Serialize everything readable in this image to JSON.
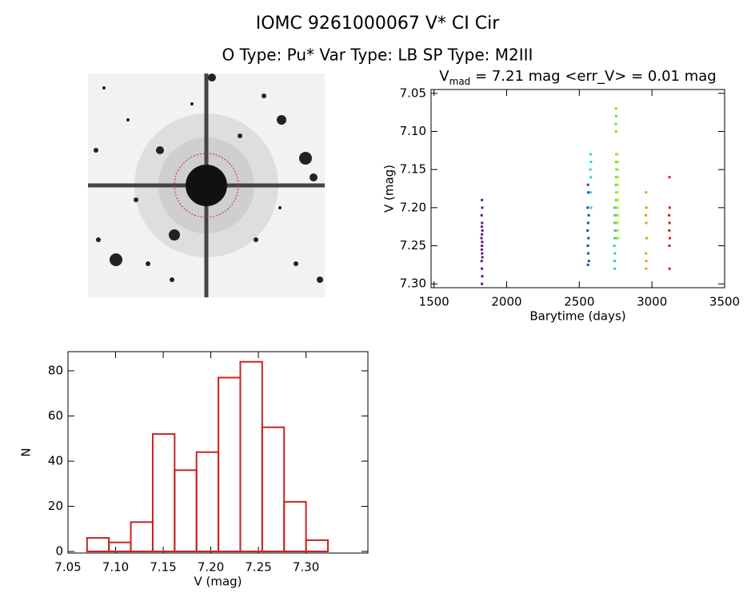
{
  "header": {
    "title": "IOMC 9261000067    V* CI Cir",
    "subtitle": "O Type: Pu*  Var Type: LB  SP Type: M2III"
  },
  "chart_data": [
    {
      "type": "scatter",
      "title": [
        "V",
        "mad",
        " = 7.21 mag <err_V> = 0.01 mag"
      ],
      "xlabel": "Barytime (days)",
      "ylabel": "V (mag)",
      "xlim": [
        1480,
        3500
      ],
      "ylim": [
        7.045,
        7.305
      ],
      "y_inverted": true,
      "xticks": [
        1500,
        2000,
        2500,
        3000,
        3500
      ],
      "yticks": [
        7.05,
        {
          "value": 7.1,
          "label": "7.10"
        },
        7.15,
        {
          "value": 7.2,
          "label": "7.20"
        },
        7.25,
        {
          "value": 7.3,
          "label": "7.30"
        }
      ],
      "series": [
        {
          "color": "#5a1a8a",
          "x": [
            1830,
            1832,
            1828,
            1831,
            1829,
            1833,
            1830,
            1827,
            1832,
            1830,
            1829,
            1831,
            1833,
            1828,
            1830,
            1832,
            1830
          ],
          "y": [
            7.19,
            7.2,
            7.21,
            7.22,
            7.225,
            7.23,
            7.235,
            7.24,
            7.245,
            7.25,
            7.255,
            7.26,
            7.265,
            7.27,
            7.28,
            7.29,
            7.3
          ]
        },
        {
          "color": "#1f4fb0",
          "x": [
            2560,
            2562,
            2558,
            2565,
            2561,
            2557,
            2563,
            2559,
            2562,
            2566,
            2560
          ],
          "y": [
            7.17,
            7.18,
            7.2,
            7.21,
            7.22,
            7.23,
            7.24,
            7.25,
            7.26,
            7.27,
            7.275
          ]
        },
        {
          "color": "#2ad4e0",
          "x": [
            2578,
            2580,
            2576,
            2579,
            2577,
            2581
          ],
          "y": [
            7.13,
            7.14,
            7.15,
            7.16,
            7.18,
            7.2
          ]
        },
        {
          "color": "#2ad4a0",
          "x": [
            2742,
            2745,
            2743,
            2746,
            2744,
            2741,
            2745,
            2743,
            2744
          ],
          "y": [
            7.2,
            7.21,
            7.22,
            7.23,
            7.24,
            7.25,
            7.26,
            7.27,
            7.28
          ]
        },
        {
          "color": "#6fe03a",
          "x": [
            2752,
            2754,
            2751,
            2753,
            2755,
            2752,
            2756,
            2753,
            2751,
            2754,
            2752,
            2755,
            2753,
            2750,
            2756
          ],
          "y": [
            7.07,
            7.08,
            7.09,
            7.1,
            7.13,
            7.14,
            7.15,
            7.16,
            7.17,
            7.18,
            7.19,
            7.2,
            7.21,
            7.22,
            7.24
          ]
        },
        {
          "color": "#b8e030",
          "x": [
            2762,
            2765,
            2763,
            2766,
            2764,
            2761,
            2765,
            2763,
            2767,
            2764,
            2762,
            2766
          ],
          "y": [
            7.13,
            7.14,
            7.15,
            7.16,
            7.17,
            7.18,
            7.19,
            7.2,
            7.21,
            7.22,
            7.23,
            7.24
          ]
        },
        {
          "color": "#e0a020",
          "x": [
            2960,
            2962,
            2958,
            2961,
            2963,
            2959,
            2961,
            2960
          ],
          "y": [
            7.18,
            7.2,
            7.21,
            7.22,
            7.24,
            7.26,
            7.27,
            7.28
          ]
        },
        {
          "color": "#d02020",
          "x": [
            3120,
            3122,
            3118,
            3121,
            3119,
            3123,
            3120,
            3121
          ],
          "y": [
            7.16,
            7.2,
            7.21,
            7.22,
            7.23,
            7.24,
            7.25,
            7.28
          ]
        }
      ]
    },
    {
      "type": "histogram",
      "xlabel": "V (mag)",
      "ylabel": "N",
      "xlim": [
        7.05,
        7.365
      ],
      "ylim": [
        -0.7,
        88.5
      ],
      "xticks": [
        7.05,
        {
          "value": 7.1,
          "label": "7.10"
        },
        7.15,
        {
          "value": 7.2,
          "label": "7.20"
        },
        7.25,
        {
          "value": 7.3,
          "label": "7.30"
        }
      ],
      "yticks": [
        0,
        20,
        40,
        60,
        80
      ],
      "color": "#cc2222",
      "bins": [
        7.07,
        7.093,
        7.116,
        7.139,
        7.162,
        7.185,
        7.208,
        7.231,
        7.254,
        7.277,
        7.3,
        7.323
      ],
      "counts": [
        6,
        4,
        13,
        52,
        36,
        44,
        77,
        84,
        55,
        22,
        5
      ]
    }
  ]
}
